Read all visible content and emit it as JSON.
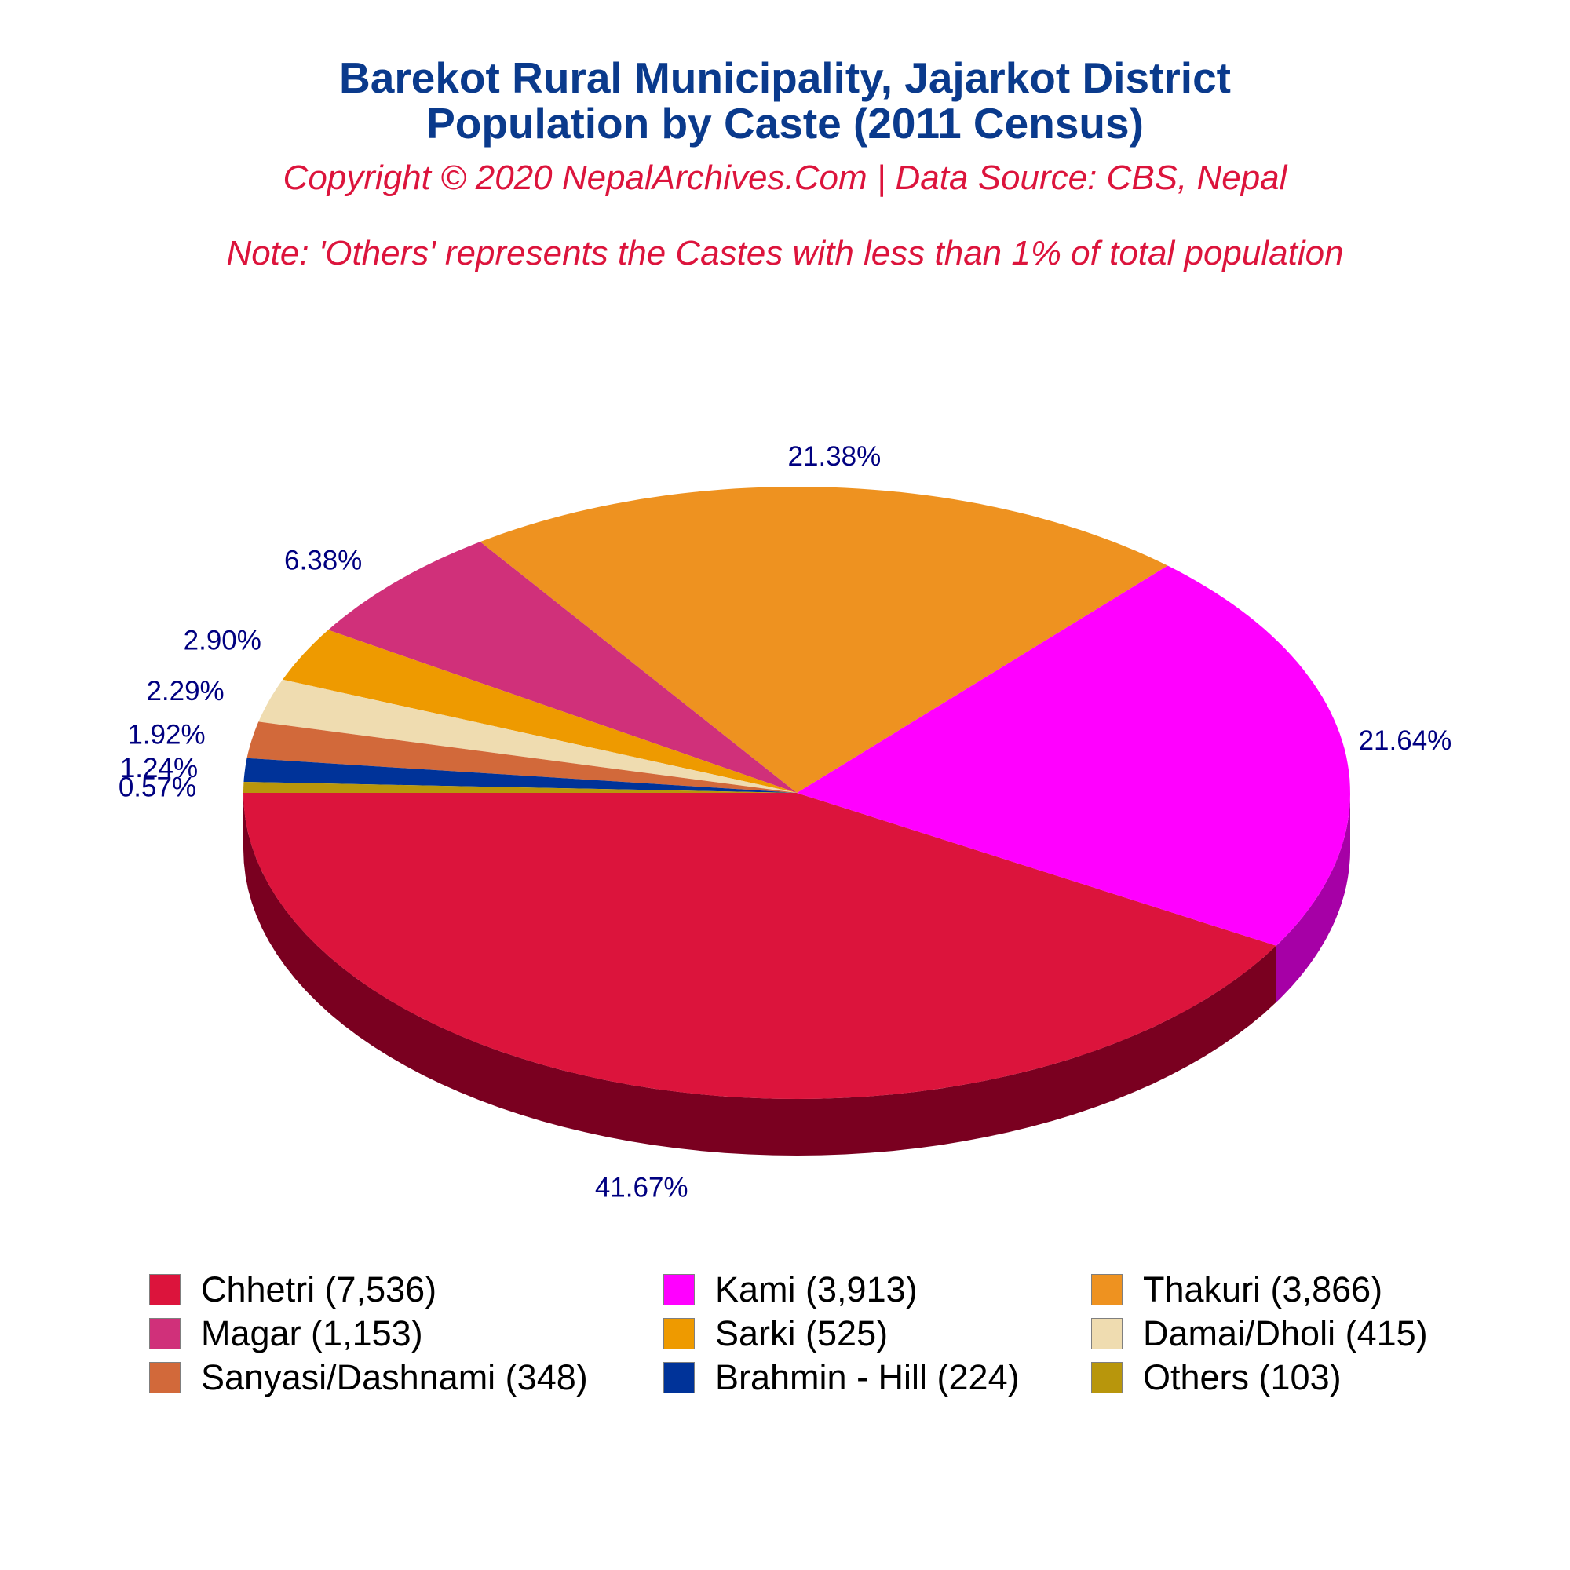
{
  "header": {
    "title_line1": "Barekot Rural Municipality, Jajarkot District",
    "title_line2": "Population by Caste (2011 Census)",
    "copyright": "Copyright © 2020 NepalArchives.Com | Data Source: CBS, Nepal",
    "note": "Note: 'Others' represents the Castes with less than 1% of total population"
  },
  "chart_data": {
    "type": "pie",
    "style": "3d",
    "start_angle_deg": 180,
    "direction": "counterclockwise",
    "legend_position": "bottom",
    "slices": [
      {
        "name": "Chhetri",
        "value": 7536,
        "percent": 41.67,
        "label": "41.67%",
        "legend": "Chhetri (7,536)",
        "color": "#dc143c",
        "side_color": "#7a0020"
      },
      {
        "name": "Kami",
        "value": 3913,
        "percent": 21.64,
        "label": "21.64%",
        "legend": "Kami (3,913)",
        "color": "#ff00ff",
        "side_color": "#a600a6"
      },
      {
        "name": "Thakuri",
        "value": 3866,
        "percent": 21.38,
        "label": "21.38%",
        "legend": "Thakuri (3,866)",
        "color": "#ee9220",
        "side_color": "#8f3300"
      },
      {
        "name": "Magar",
        "value": 1153,
        "percent": 6.38,
        "label": "6.38%",
        "legend": "Magar (1,153)",
        "color": "#d0307a",
        "side_color": "#6a0025"
      },
      {
        "name": "Sarki",
        "value": 525,
        "percent": 2.9,
        "label": "2.90%",
        "legend": "Sarki (525)",
        "color": "#ee9a00",
        "side_color": "#8a4f00"
      },
      {
        "name": "Damai/Dholi",
        "value": 415,
        "percent": 2.29,
        "label": "2.29%",
        "legend": "Damai/Dholi (415)",
        "color": "#efdcb0",
        "side_color": "#a89060"
      },
      {
        "name": "Sanyasi/Dashnami",
        "value": 348,
        "percent": 1.92,
        "label": "1.92%",
        "legend": "Sanyasi/Dashnami (348)",
        "color": "#d2693a",
        "side_color": "#7a3510"
      },
      {
        "name": "Brahmin - Hill",
        "value": 224,
        "percent": 1.24,
        "label": "1.24%",
        "legend": "Brahmin - Hill (224)",
        "color": "#003399",
        "side_color": "#001a55"
      },
      {
        "name": "Others",
        "value": 103,
        "percent": 0.57,
        "label": "0.57%",
        "legend": "Others (103)",
        "color": "#b8960c",
        "side_color": "#6a5500"
      }
    ]
  }
}
